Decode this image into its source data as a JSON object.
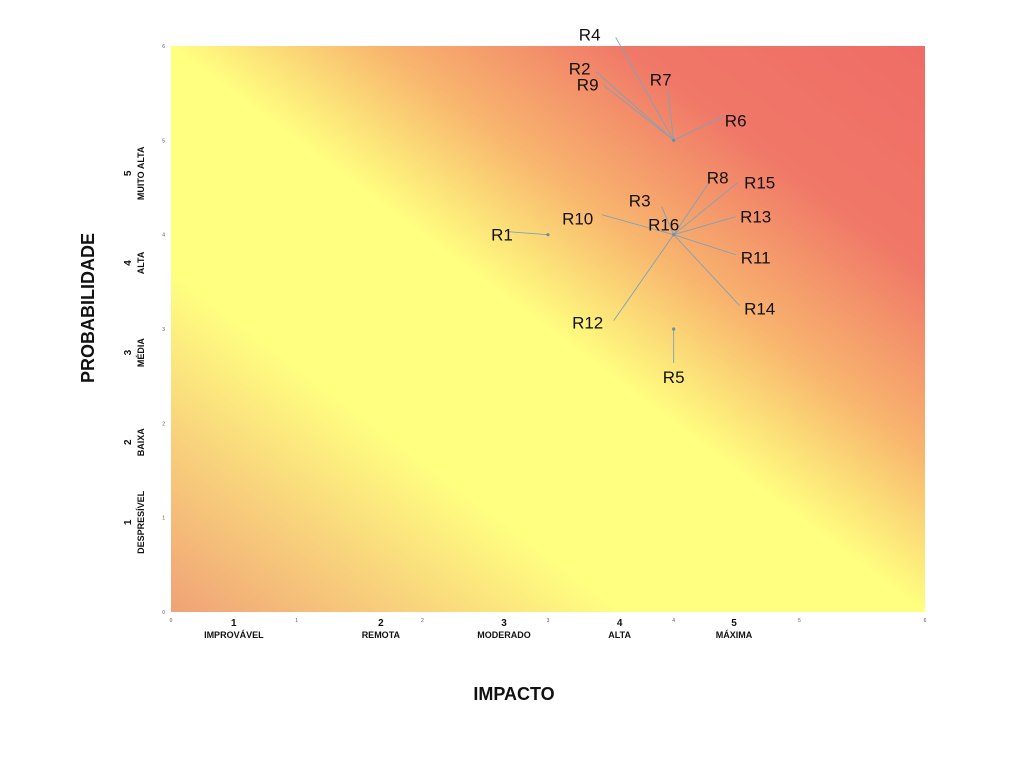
{
  "chart_data": {
    "type": "scatter",
    "title": "",
    "xlabel": "IMPACTO",
    "ylabel": "PROBABILIDADE",
    "xlim": [
      0,
      6
    ],
    "ylim": [
      0,
      6
    ],
    "x_ticks": [
      "0",
      "1",
      "2",
      "3",
      "4",
      "5",
      "6"
    ],
    "y_ticks": [
      "0",
      "1",
      "2",
      "3",
      "4",
      "5",
      "6"
    ],
    "x_categories": [
      {
        "level": "1",
        "name": "IMPROVÁVEL",
        "pos": 0.5
      },
      {
        "level": "2",
        "name": "REMOTA",
        "pos": 1.67
      },
      {
        "level": "3",
        "name": "MODERADO",
        "pos": 2.65
      },
      {
        "level": "4",
        "name": "ALTA",
        "pos": 3.57
      },
      {
        "level": "5",
        "name": "MÁXIMA",
        "pos": 4.48
      }
    ],
    "y_categories": [
      {
        "level": "1",
        "name": "DESPRESÍVEL",
        "pos": 0.95
      },
      {
        "level": "2",
        "name": "BAIXA",
        "pos": 1.8
      },
      {
        "level": "3",
        "name": "MÉDIA",
        "pos": 2.75
      },
      {
        "level": "4",
        "name": "ALTA",
        "pos": 3.7
      },
      {
        "level": "5",
        "name": "MUITO ALTA",
        "pos": 4.65
      }
    ],
    "background": {
      "type": "gradient",
      "low_color": "#ffff80",
      "high_color": "#f07068"
    },
    "grid": false,
    "legend": "none",
    "points": [
      {
        "name": "R1",
        "x": 3,
        "y": 4
      },
      {
        "name": "R2",
        "x": 4,
        "y": 5
      },
      {
        "name": "R3",
        "x": 4,
        "y": 4
      },
      {
        "name": "R4",
        "x": 4,
        "y": 5
      },
      {
        "name": "R5",
        "x": 4,
        "y": 3
      },
      {
        "name": "R6",
        "x": 4,
        "y": 5
      },
      {
        "name": "R7",
        "x": 4,
        "y": 5
      },
      {
        "name": "R8",
        "x": 4,
        "y": 4
      },
      {
        "name": "R9",
        "x": 4,
        "y": 5
      },
      {
        "name": "R10",
        "x": 4,
        "y": 4
      },
      {
        "name": "R11",
        "x": 4,
        "y": 4
      },
      {
        "name": "R12",
        "x": 4,
        "y": 4
      },
      {
        "name": "R13",
        "x": 4,
        "y": 4
      },
      {
        "name": "R14",
        "x": 4,
        "y": 4
      },
      {
        "name": "R15",
        "x": 4,
        "y": 4
      },
      {
        "name": "R16",
        "x": 4,
        "y": 4
      }
    ]
  }
}
